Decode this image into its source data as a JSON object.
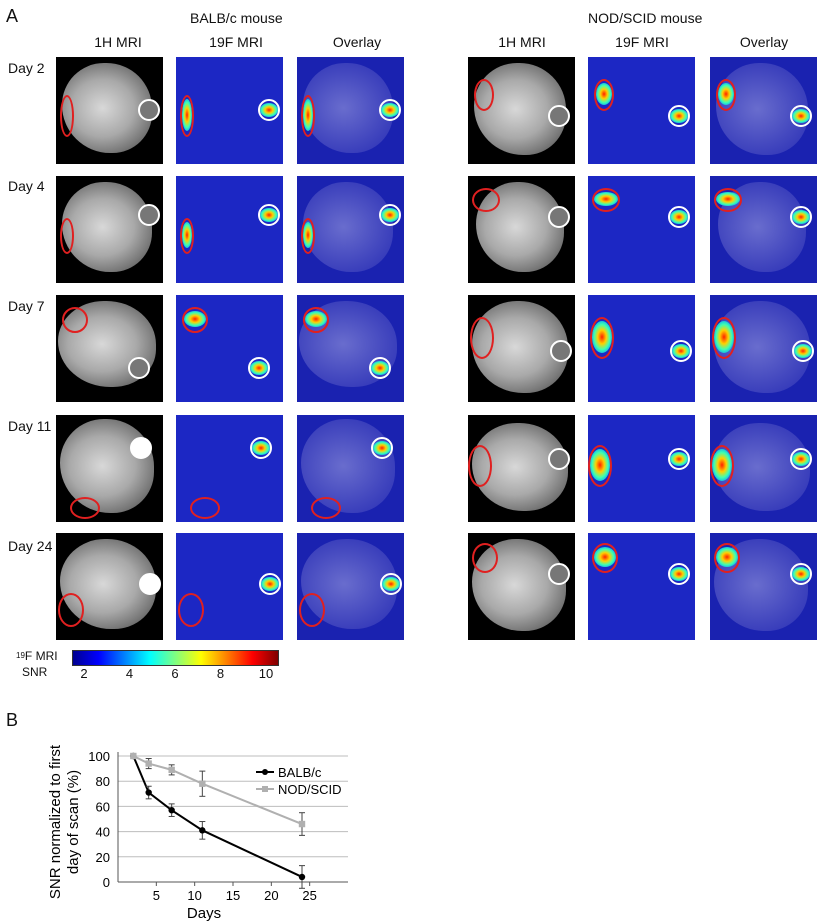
{
  "panel_a_label": "A",
  "panel_b_label": "B",
  "groups": [
    {
      "title": "BALB/c mouse",
      "columns": [
        "1H MRI",
        "19F MRI",
        "Overlay"
      ]
    },
    {
      "title": "NOD/SCID mouse",
      "columns": [
        "1H MRI",
        "19F MRI",
        "Overlay"
      ]
    }
  ],
  "rows": [
    "Day 2",
    "Day 4",
    "Day 7",
    "Day 11",
    "Day 24"
  ],
  "colorbar": {
    "label_sup": "19",
    "label_main": "F MRI",
    "label_line2": "SNR",
    "ticks": [
      "2",
      "4",
      "6",
      "8",
      "10"
    ],
    "colors": [
      "#00008f",
      "#0000ff",
      "#0080ff",
      "#00ffff",
      "#80ff80",
      "#ffff00",
      "#ff8000",
      "#ff0000",
      "#800000"
    ]
  },
  "chart_data": {
    "type": "line",
    "xlabel": "Days",
    "ylabel_line1": "SNR normalized to first",
    "ylabel_line2": "day of scan (%)",
    "xlim": [
      0,
      30
    ],
    "ylim": [
      0,
      100
    ],
    "xticks": [
      5,
      10,
      15,
      20,
      25
    ],
    "yticks": [
      0,
      20,
      40,
      60,
      80,
      100
    ],
    "grid": true,
    "legend_position": "right",
    "series": [
      {
        "name": "BALB/c",
        "color": "#000000",
        "marker": "circle",
        "x": [
          2,
          4,
          7,
          11,
          24
        ],
        "y": [
          100,
          71,
          57,
          41,
          4
        ],
        "err": [
          0,
          5,
          5,
          7,
          9
        ]
      },
      {
        "name": "NOD/SCID",
        "color": "#b0b0b0",
        "marker": "square",
        "x": [
          2,
          4,
          7,
          11,
          24
        ],
        "y": [
          100,
          94,
          89,
          78,
          46
        ],
        "err": [
          0,
          4,
          4,
          10,
          9
        ]
      }
    ]
  }
}
